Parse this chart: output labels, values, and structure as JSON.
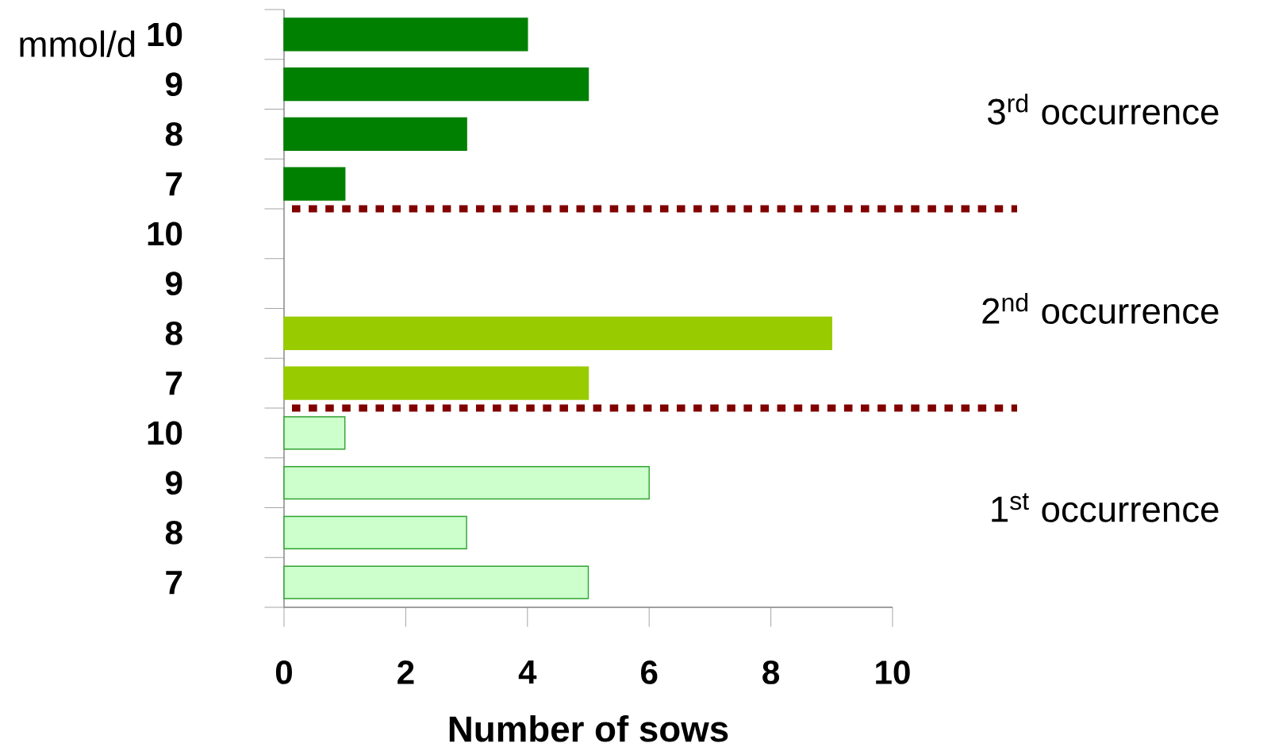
{
  "chart_data": {
    "type": "bar",
    "orientation": "horizontal",
    "xlabel": "Number of sows",
    "ylabel": "mmol/d",
    "categories": [
      "10",
      "9",
      "8",
      "7",
      "10",
      "9",
      "8",
      "7",
      "10",
      "9",
      "8",
      "7"
    ],
    "values": [
      4,
      5,
      3,
      1,
      null,
      null,
      9,
      5,
      1,
      6,
      3,
      5
    ],
    "colors": [
      "#008000",
      "#008000",
      "#008000",
      "#008000",
      "#99cc00",
      "#99cc00",
      "#99cc00",
      "#99cc00",
      "#ccffcc",
      "#ccffcc",
      "#ccffcc",
      "#ccffcc"
    ],
    "xlim": [
      0,
      10
    ],
    "xticks": [
      0,
      2,
      4,
      6,
      8,
      10
    ],
    "grid": false,
    "annotations": [
      "3$^{rd}$  occurrence",
      "2$^{nd}$ occurrence",
      "1$^{st}$ occurrence"
    ]
  }
}
